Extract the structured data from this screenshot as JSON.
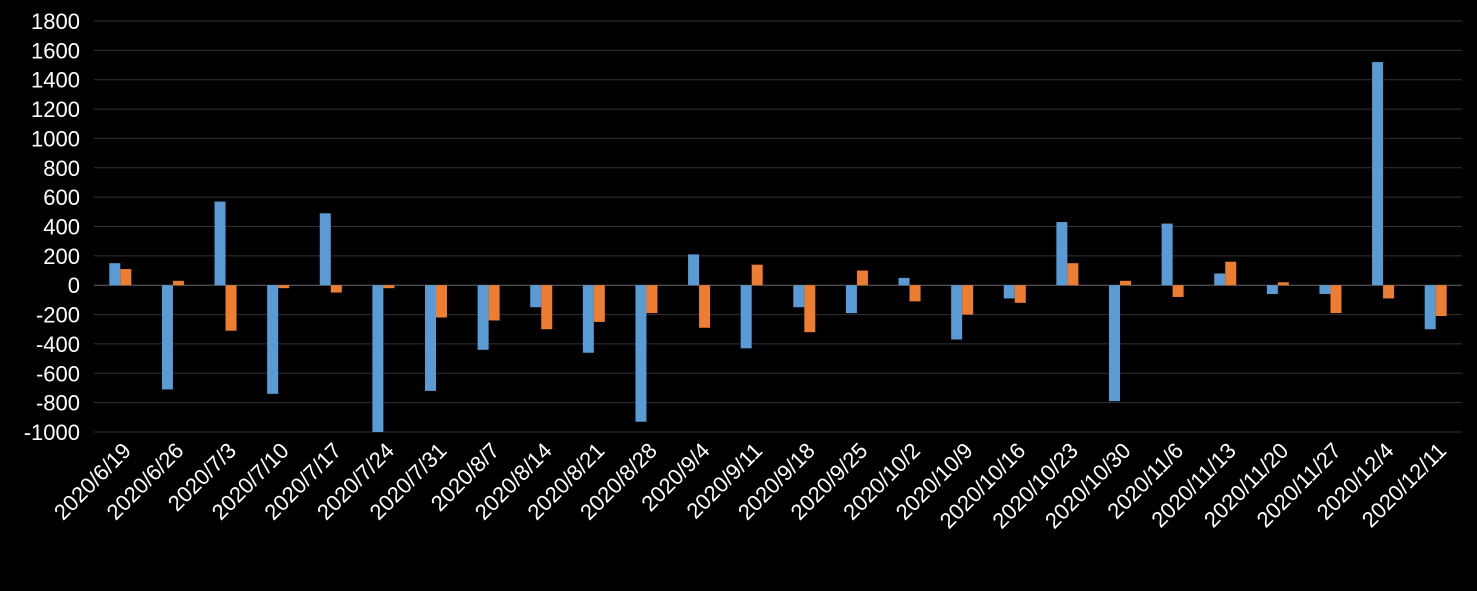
{
  "chart_data": {
    "type": "bar",
    "title": "",
    "xlabel": "",
    "ylabel": "",
    "ylim": [
      -1000,
      1800
    ],
    "yticks": [
      -1000,
      -800,
      -600,
      -400,
      -200,
      0,
      200,
      400,
      600,
      800,
      1000,
      1200,
      1400,
      1600,
      1800
    ],
    "grid": true,
    "legend": "none",
    "categories": [
      "2020/6/19",
      "2020/6/26",
      "2020/7/3",
      "2020/7/10",
      "2020/7/17",
      "2020/7/24",
      "2020/7/31",
      "2020/8/7",
      "2020/8/14",
      "2020/8/21",
      "2020/8/28",
      "2020/9/4",
      "2020/9/11",
      "2020/9/18",
      "2020/9/25",
      "2020/10/2",
      "2020/10/9",
      "2020/10/16",
      "2020/10/23",
      "2020/10/30",
      "2020/11/6",
      "2020/11/13",
      "2020/11/20",
      "2020/11/27",
      "2020/12/4",
      "2020/12/11"
    ],
    "series": [
      {
        "color": "#5b9bd5",
        "values": [
          150,
          -710,
          570,
          -740,
          490,
          -1000,
          -720,
          -440,
          -150,
          -460,
          -930,
          210,
          -430,
          -150,
          -190,
          50,
          -370,
          -90,
          430,
          -790,
          420,
          80,
          -60,
          -60,
          1520,
          -300
        ]
      },
      {
        "color": "#ed7d31",
        "values": [
          110,
          30,
          -310,
          -20,
          -50,
          -20,
          -220,
          -240,
          -300,
          -250,
          -190,
          -290,
          140,
          -320,
          100,
          -110,
          -200,
          -120,
          150,
          30,
          -80,
          160,
          20,
          -190,
          -90,
          -210
        ]
      }
    ]
  }
}
